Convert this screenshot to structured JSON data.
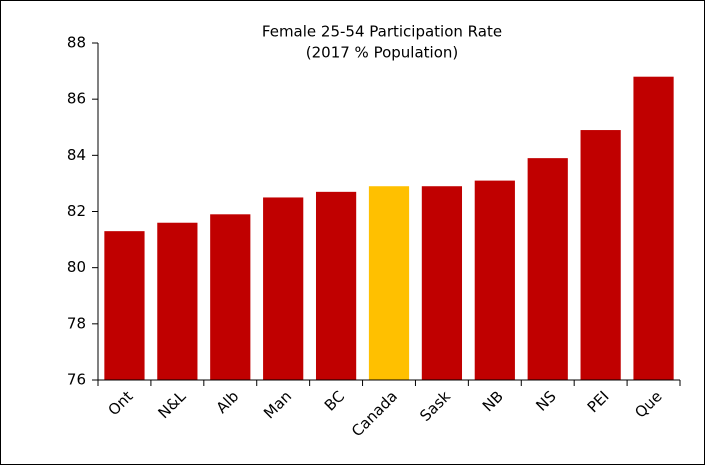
{
  "chart_data": {
    "type": "bar",
    "title": "Female 25-54 Participation Rate",
    "subtitle": "(2017 % Population)",
    "categories": [
      "Ont",
      "N&L",
      "Alb",
      "Man",
      "BC",
      "Canada",
      "Sask",
      "NB",
      "NS",
      "PEI",
      "Que"
    ],
    "values": [
      81.3,
      81.6,
      81.9,
      82.5,
      82.7,
      82.9,
      82.9,
      83.1,
      83.9,
      84.9,
      86.8
    ],
    "colors": [
      "#c00000",
      "#c00000",
      "#c00000",
      "#c00000",
      "#c00000",
      "#ffc000",
      "#c00000",
      "#c00000",
      "#c00000",
      "#c00000",
      "#c00000"
    ],
    "ylim": [
      76,
      88
    ],
    "yticks": [
      76,
      78,
      80,
      82,
      84,
      86,
      88
    ],
    "grid": false
  }
}
